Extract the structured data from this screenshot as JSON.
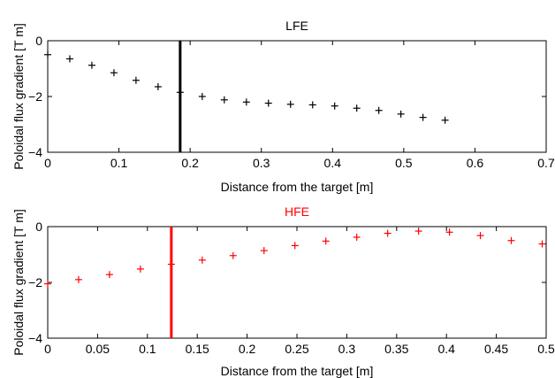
{
  "chart_data": [
    {
      "type": "scatter",
      "title": "LFE",
      "title_color": "#000000",
      "xlabel": "Distance from the target [m]",
      "ylabel": "Poloidal flux gradient [T m]",
      "xlim": [
        0,
        0.7
      ],
      "ylim": [
        -4,
        0
      ],
      "xticks": [
        0,
        0.1,
        0.2,
        0.3,
        0.4,
        0.5,
        0.6,
        0.7
      ],
      "xtick_labels": [
        "0",
        "0.1",
        "0.2",
        "0.3",
        "0.4",
        "0.5",
        "0.6",
        "0.7"
      ],
      "yticks": [
        -4,
        -2,
        0
      ],
      "ytick_labels": [
        "−4",
        "−2",
        "0"
      ],
      "marker": "+",
      "color": "#000000",
      "vline_x": 0.186,
      "x": [
        0.0,
        0.031,
        0.062,
        0.093,
        0.124,
        0.155,
        0.186,
        0.217,
        0.248,
        0.279,
        0.31,
        0.341,
        0.372,
        0.403,
        0.434,
        0.465,
        0.496,
        0.527,
        0.558
      ],
      "y": [
        -0.5,
        -0.65,
        -0.88,
        -1.15,
        -1.42,
        -1.65,
        -1.85,
        -2.0,
        -2.12,
        -2.2,
        -2.24,
        -2.28,
        -2.3,
        -2.34,
        -2.42,
        -2.5,
        -2.63,
        -2.75,
        -2.85
      ]
    },
    {
      "type": "scatter",
      "title": "HFE",
      "title_color": "#ff0000",
      "xlabel": "Distance from the target [m]",
      "ylabel": "Poloidal flux gradient [T m]",
      "xlim": [
        0,
        0.5
      ],
      "ylim": [
        -4,
        0
      ],
      "xticks": [
        0,
        0.05,
        0.1,
        0.15,
        0.2,
        0.25,
        0.3,
        0.35,
        0.4,
        0.45,
        0.5
      ],
      "xtick_labels": [
        "0",
        "0.05",
        "0.1",
        "0.15",
        "0.2",
        "0.25",
        "0.3",
        "0.35",
        "0.4",
        "0.45",
        "0.5"
      ],
      "yticks": [
        -4,
        -2,
        0
      ],
      "ytick_labels": [
        "−4",
        "−2",
        "0"
      ],
      "marker": "+",
      "color": "#ff0000",
      "vline_x": 0.124,
      "x": [
        0.0,
        0.031,
        0.062,
        0.093,
        0.124,
        0.155,
        0.186,
        0.217,
        0.248,
        0.279,
        0.31,
        0.341,
        0.372,
        0.403,
        0.434,
        0.465,
        0.496
      ],
      "y": [
        -2.05,
        -1.9,
        -1.72,
        -1.52,
        -1.35,
        -1.2,
        -1.04,
        -0.86,
        -0.68,
        -0.52,
        -0.38,
        -0.24,
        -0.16,
        -0.2,
        -0.32,
        -0.5,
        -0.62
      ]
    }
  ]
}
